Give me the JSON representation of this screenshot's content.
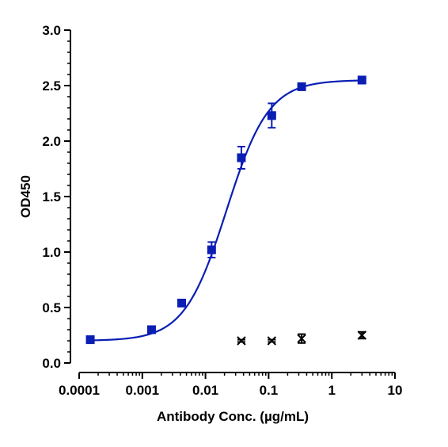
{
  "chart_data": {
    "type": "scatter",
    "title": "",
    "xlabel": "Antibody Conc. (µg/mL)",
    "ylabel": "OD450",
    "x_scale": "log",
    "xlim": [
      0.0001,
      10
    ],
    "ylim": [
      0,
      3.0
    ],
    "x_ticks": [
      0.0001,
      0.001,
      0.01,
      0.1,
      1,
      10
    ],
    "x_tick_labels": [
      "0.0001",
      "0.001",
      "0.01",
      "0.1",
      "1",
      "10"
    ],
    "y_ticks": [
      0,
      0.5,
      1.0,
      1.5,
      2.0,
      2.5,
      3.0
    ],
    "y_tick_labels": [
      "0.0",
      "0.5",
      "1.0",
      "1.5",
      "2.0",
      "2.5",
      "3.0"
    ],
    "grid": false,
    "legend": "none",
    "colors": {
      "series": "#0a1eb4",
      "control": "#000000",
      "axis": "#000000"
    },
    "series": [
      {
        "marker": "square",
        "fit": "4PL",
        "fit_params": {
          "bottom": 0.2,
          "top": 2.55,
          "ec50": 0.0215,
          "hill": 1.3
        },
        "x": [
          0.00015,
          0.0014,
          0.0042,
          0.0125,
          0.037,
          0.112,
          0.333,
          3.0
        ],
        "y": [
          0.21,
          0.3,
          0.54,
          1.02,
          1.85,
          2.23,
          2.49,
          2.55
        ],
        "error": [
          0.01,
          0.01,
          0.02,
          0.07,
          0.1,
          0.11,
          0.02,
          0.01
        ]
      },
      {
        "marker": "x",
        "x": [
          0.037,
          0.112,
          0.333,
          3.0
        ],
        "y": [
          0.2,
          0.2,
          0.22,
          0.25
        ],
        "error": [
          0.01,
          0.01,
          0.04,
          0.03
        ]
      }
    ]
  }
}
